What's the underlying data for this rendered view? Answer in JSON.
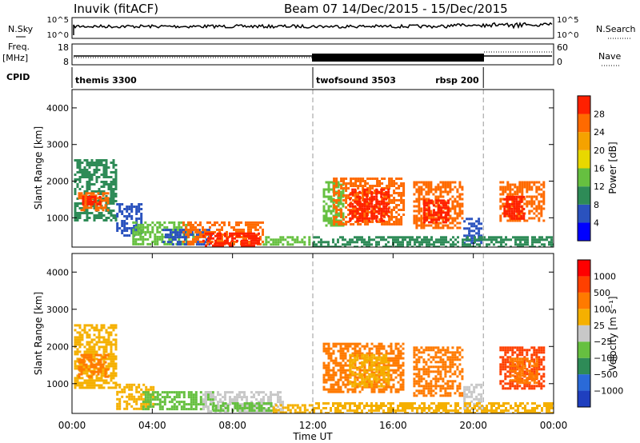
{
  "header": {
    "station": "Inuvik (fitACF)",
    "beam_info": "Beam 07  14/Dec/2015 - 15/Dec/2015"
  },
  "top_panels": {
    "nsky_label": "N.Sky",
    "nsearch_label": "N.Search",
    "nsky_ticks": [
      "10^5",
      "10^0"
    ],
    "nsearch_ticks": [
      "10^5",
      "10^0"
    ],
    "freq_label": "Freq.",
    "freq_unit": "[MHz]",
    "freq_ticks": [
      "18",
      "8"
    ],
    "nave_label": "Nave",
    "nave_ticks": [
      "60",
      "0"
    ],
    "cpid_label": "CPID",
    "cpid_modes": [
      {
        "name": "themis 3300",
        "start_hr": 0,
        "end_hr": 12
      },
      {
        "name": "twofsound 3503",
        "start_hr": 12,
        "end_hr": 20.5
      },
      {
        "name": "rbsp 200",
        "start_hr": 20.5,
        "end_hr": 24
      }
    ]
  },
  "chart_data": [
    {
      "type": "heatmap",
      "name": "power",
      "ylabel": "Slant Range [km]",
      "xlabel": "Time UT",
      "y_ticks": [
        1000,
        2000,
        3000,
        4000
      ],
      "ylim": [
        200,
        4500
      ],
      "xlim_hours": [
        0,
        24
      ],
      "x_ticks": [
        "00:00",
        "04:00",
        "08:00",
        "12:00",
        "16:00",
        "20:00",
        "00:00"
      ],
      "colorbar": {
        "label": "Power [dB]",
        "ticks": [
          "4",
          "8",
          "12",
          "16",
          "20",
          "24",
          "28"
        ],
        "colors": [
          "#0000ff",
          "#2a52be",
          "#2e8b57",
          "#66c040",
          "#e8d800",
          "#f5a200",
          "#ff6a00",
          "#ff2000"
        ]
      },
      "regions": [
        {
          "t0": 0.1,
          "t1": 2.2,
          "r0": 900,
          "r1": 2600,
          "c": "#2e8b57"
        },
        {
          "t0": 0.3,
          "t1": 1.8,
          "r0": 1200,
          "r1": 1700,
          "c": "#ff6a00"
        },
        {
          "t0": 0.5,
          "t1": 1.4,
          "r0": 1350,
          "r1": 1600,
          "c": "#ff2000"
        },
        {
          "t0": 2.2,
          "t1": 3.5,
          "r0": 500,
          "r1": 1400,
          "c": "#2a52be"
        },
        {
          "t0": 3.0,
          "t1": 6.0,
          "r0": 300,
          "r1": 900,
          "c": "#66c040"
        },
        {
          "t0": 4.5,
          "t1": 7.0,
          "r0": 300,
          "r1": 700,
          "c": "#2a52be"
        },
        {
          "t0": 5.5,
          "t1": 9.5,
          "r0": 250,
          "r1": 900,
          "c": "#ff6a00"
        },
        {
          "t0": 6.5,
          "t1": 9.3,
          "r0": 250,
          "r1": 600,
          "c": "#ff2000"
        },
        {
          "t0": 9.5,
          "t1": 11.8,
          "r0": 250,
          "r1": 500,
          "c": "#66c040"
        },
        {
          "t0": 12.5,
          "t1": 13.5,
          "r0": 800,
          "r1": 2000,
          "c": "#66c040"
        },
        {
          "t0": 13.0,
          "t1": 16.5,
          "r0": 800,
          "r1": 2100,
          "c": "#ff6a00"
        },
        {
          "t0": 13.8,
          "t1": 15.8,
          "r0": 900,
          "r1": 1800,
          "c": "#ff2000"
        },
        {
          "t0": 17.0,
          "t1": 19.5,
          "r0": 700,
          "r1": 2000,
          "c": "#ff6a00"
        },
        {
          "t0": 17.5,
          "t1": 18.8,
          "r0": 900,
          "r1": 1500,
          "c": "#ff2000"
        },
        {
          "t0": 19.5,
          "t1": 20.4,
          "r0": 300,
          "r1": 1000,
          "c": "#2a52be"
        },
        {
          "t0": 21.3,
          "t1": 23.5,
          "r0": 900,
          "r1": 2000,
          "c": "#ff6a00"
        },
        {
          "t0": 21.5,
          "t1": 22.5,
          "r0": 1000,
          "r1": 1600,
          "c": "#ff2000"
        },
        {
          "t0": 12.0,
          "t1": 24.0,
          "r0": 220,
          "r1": 500,
          "c": "#2e8b57"
        }
      ]
    },
    {
      "type": "heatmap",
      "name": "velocity",
      "ylabel": "Slant Range [km]",
      "xlabel": "Time UT",
      "y_ticks": [
        1000,
        2000,
        3000,
        4000
      ],
      "ylim": [
        200,
        4500
      ],
      "xlim_hours": [
        0,
        24
      ],
      "x_ticks": [
        "00:00",
        "04:00",
        "08:00",
        "12:00",
        "16:00",
        "20:00",
        "00:00"
      ],
      "colorbar": {
        "label": "Velocity [m s⁻¹]",
        "ticks": [
          "1000",
          "500",
          "100",
          "25",
          "−25",
          "−100",
          "−500",
          "−1000"
        ],
        "colors": [
          "#1f3fbf",
          "#2a6ad8",
          "#2e8b57",
          "#66c040",
          "#c8c8c8",
          "#f5b000",
          "#ff7a00",
          "#ff4000",
          "#ff0000"
        ]
      },
      "regions": [
        {
          "t0": 0.1,
          "t1": 2.2,
          "r0": 900,
          "r1": 2600,
          "c": "#f5b000"
        },
        {
          "t0": 0.3,
          "t1": 1.8,
          "r0": 1200,
          "r1": 1800,
          "c": "#ff7a00"
        },
        {
          "t0": 2.2,
          "t1": 4.0,
          "r0": 300,
          "r1": 1000,
          "c": "#f5b000"
        },
        {
          "t0": 3.5,
          "t1": 7.0,
          "r0": 300,
          "r1": 800,
          "c": "#66c040"
        },
        {
          "t0": 6.5,
          "t1": 10.5,
          "r0": 250,
          "r1": 800,
          "c": "#c8c8c8"
        },
        {
          "t0": 7.0,
          "t1": 10.0,
          "r0": 250,
          "r1": 500,
          "c": "#66c040"
        },
        {
          "t0": 10.0,
          "t1": 12.0,
          "r0": 250,
          "r1": 450,
          "c": "#f5b000"
        },
        {
          "t0": 12.5,
          "t1": 16.5,
          "r0": 800,
          "r1": 2100,
          "c": "#ff7a00"
        },
        {
          "t0": 13.8,
          "t1": 15.8,
          "r0": 900,
          "r1": 1800,
          "c": "#f5b000"
        },
        {
          "t0": 17.0,
          "t1": 19.5,
          "r0": 700,
          "r1": 2000,
          "c": "#ff7a00"
        },
        {
          "t0": 19.5,
          "t1": 20.4,
          "r0": 300,
          "r1": 1000,
          "c": "#c8c8c8"
        },
        {
          "t0": 21.3,
          "t1": 23.5,
          "r0": 900,
          "r1": 2000,
          "c": "#ff4000"
        },
        {
          "t0": 21.8,
          "t1": 23.2,
          "r0": 1000,
          "r1": 1700,
          "c": "#ff7a00"
        },
        {
          "t0": 12.0,
          "t1": 24.0,
          "r0": 220,
          "r1": 500,
          "c": "#f5b000"
        }
      ]
    }
  ]
}
